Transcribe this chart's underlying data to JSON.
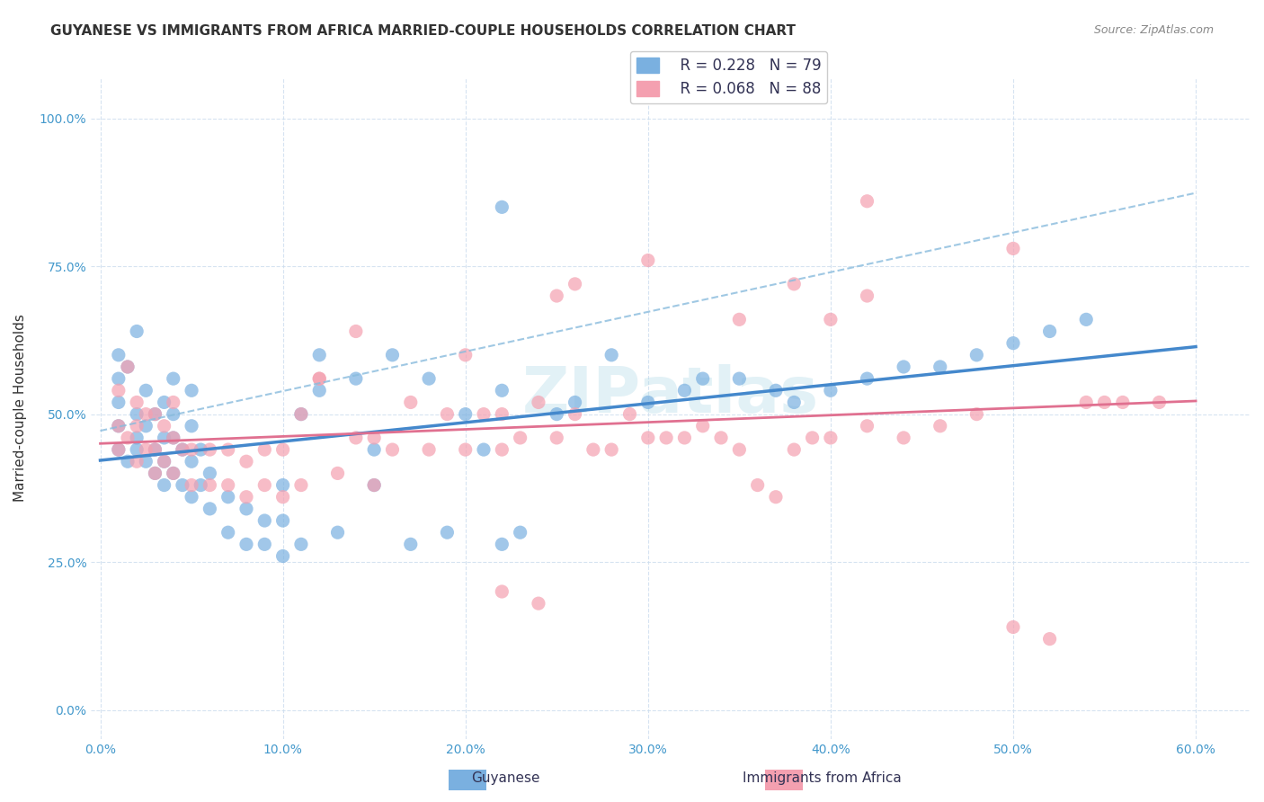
{
  "title": "GUYANESE VS IMMIGRANTS FROM AFRICA MARRIED-COUPLE HOUSEHOLDS CORRELATION CHART",
  "source": "Source: ZipAtlas.com",
  "xlabel_ticks": [
    "0.0%",
    "10.0%",
    "20.0%",
    "30.0%",
    "40.0%",
    "50.0%",
    "60.0%"
  ],
  "xlabel_tick_vals": [
    0.0,
    0.1,
    0.2,
    0.3,
    0.4,
    0.5,
    0.6
  ],
  "ylabel_ticks": [
    "0.0%",
    "25.0%",
    "50.0%",
    "75.0%",
    "100.0%"
  ],
  "ylabel_tick_vals": [
    0.0,
    0.25,
    0.5,
    0.75,
    1.0
  ],
  "xlim": [
    -0.005,
    0.63
  ],
  "ylim": [
    -0.05,
    1.07
  ],
  "legend_r1": "R = 0.228",
  "legend_n1": "N = 79",
  "legend_r2": "R = 0.068",
  "legend_n2": "N = 88",
  "legend_label1": "Guyanese",
  "legend_label2": "Immigrants from Africa",
  "ylabel": "Married-couple Households",
  "color_blue": "#7ab0e0",
  "color_pink": "#f4a0b0",
  "color_blue_line": "#4488cc",
  "color_pink_line": "#e07090",
  "color_blue_dash": "#88bbdd",
  "watermark": "ZIPatlas",
  "title_fontsize": 11,
  "source_fontsize": 9,
  "tick_fontsize": 10,
  "blue_x": [
    0.01,
    0.01,
    0.01,
    0.01,
    0.01,
    0.015,
    0.015,
    0.02,
    0.02,
    0.02,
    0.02,
    0.025,
    0.025,
    0.025,
    0.03,
    0.03,
    0.03,
    0.035,
    0.035,
    0.035,
    0.035,
    0.04,
    0.04,
    0.04,
    0.04,
    0.045,
    0.045,
    0.05,
    0.05,
    0.05,
    0.05,
    0.055,
    0.055,
    0.06,
    0.06,
    0.07,
    0.07,
    0.08,
    0.08,
    0.09,
    0.09,
    0.1,
    0.1,
    0.1,
    0.11,
    0.11,
    0.12,
    0.12,
    0.13,
    0.14,
    0.15,
    0.15,
    0.16,
    0.17,
    0.18,
    0.19,
    0.2,
    0.21,
    0.22,
    0.22,
    0.23,
    0.25,
    0.26,
    0.28,
    0.3,
    0.32,
    0.33,
    0.35,
    0.37,
    0.38,
    0.4,
    0.42,
    0.44,
    0.46,
    0.48,
    0.5,
    0.52,
    0.54,
    0.22
  ],
  "blue_y": [
    0.44,
    0.48,
    0.52,
    0.56,
    0.6,
    0.42,
    0.58,
    0.44,
    0.46,
    0.5,
    0.64,
    0.42,
    0.48,
    0.54,
    0.4,
    0.44,
    0.5,
    0.38,
    0.42,
    0.46,
    0.52,
    0.4,
    0.46,
    0.5,
    0.56,
    0.38,
    0.44,
    0.36,
    0.42,
    0.48,
    0.54,
    0.38,
    0.44,
    0.34,
    0.4,
    0.3,
    0.36,
    0.28,
    0.34,
    0.28,
    0.32,
    0.26,
    0.32,
    0.38,
    0.28,
    0.5,
    0.54,
    0.6,
    0.3,
    0.56,
    0.38,
    0.44,
    0.6,
    0.28,
    0.56,
    0.3,
    0.5,
    0.44,
    0.54,
    0.28,
    0.3,
    0.5,
    0.52,
    0.6,
    0.52,
    0.54,
    0.56,
    0.56,
    0.54,
    0.52,
    0.54,
    0.56,
    0.58,
    0.58,
    0.6,
    0.62,
    0.64,
    0.66,
    0.85
  ],
  "pink_x": [
    0.01,
    0.01,
    0.01,
    0.015,
    0.015,
    0.02,
    0.02,
    0.02,
    0.025,
    0.025,
    0.03,
    0.03,
    0.03,
    0.035,
    0.035,
    0.04,
    0.04,
    0.04,
    0.045,
    0.05,
    0.05,
    0.06,
    0.06,
    0.07,
    0.07,
    0.08,
    0.08,
    0.09,
    0.09,
    0.1,
    0.1,
    0.11,
    0.11,
    0.12,
    0.13,
    0.14,
    0.15,
    0.15,
    0.16,
    0.17,
    0.18,
    0.19,
    0.2,
    0.21,
    0.22,
    0.22,
    0.23,
    0.24,
    0.25,
    0.26,
    0.27,
    0.28,
    0.29,
    0.3,
    0.31,
    0.32,
    0.33,
    0.34,
    0.35,
    0.36,
    0.37,
    0.38,
    0.39,
    0.4,
    0.42,
    0.44,
    0.46,
    0.48,
    0.5,
    0.52,
    0.54,
    0.56,
    0.58,
    0.4,
    0.42,
    0.5,
    0.55,
    0.25,
    0.26,
    0.3,
    0.35,
    0.38,
    0.42,
    0.2,
    0.22,
    0.24,
    0.12,
    0.14
  ],
  "pink_y": [
    0.44,
    0.48,
    0.54,
    0.46,
    0.58,
    0.42,
    0.48,
    0.52,
    0.44,
    0.5,
    0.4,
    0.44,
    0.5,
    0.42,
    0.48,
    0.4,
    0.46,
    0.52,
    0.44,
    0.38,
    0.44,
    0.38,
    0.44,
    0.38,
    0.44,
    0.36,
    0.42,
    0.38,
    0.44,
    0.36,
    0.44,
    0.38,
    0.5,
    0.56,
    0.4,
    0.46,
    0.38,
    0.46,
    0.44,
    0.52,
    0.44,
    0.5,
    0.44,
    0.5,
    0.44,
    0.5,
    0.46,
    0.52,
    0.46,
    0.5,
    0.44,
    0.44,
    0.5,
    0.46,
    0.46,
    0.46,
    0.48,
    0.46,
    0.44,
    0.38,
    0.36,
    0.44,
    0.46,
    0.46,
    0.48,
    0.46,
    0.48,
    0.5,
    0.14,
    0.12,
    0.52,
    0.52,
    0.52,
    0.66,
    0.7,
    0.78,
    0.52,
    0.7,
    0.72,
    0.76,
    0.66,
    0.72,
    0.86,
    0.6,
    0.2,
    0.18,
    0.56,
    0.64
  ]
}
